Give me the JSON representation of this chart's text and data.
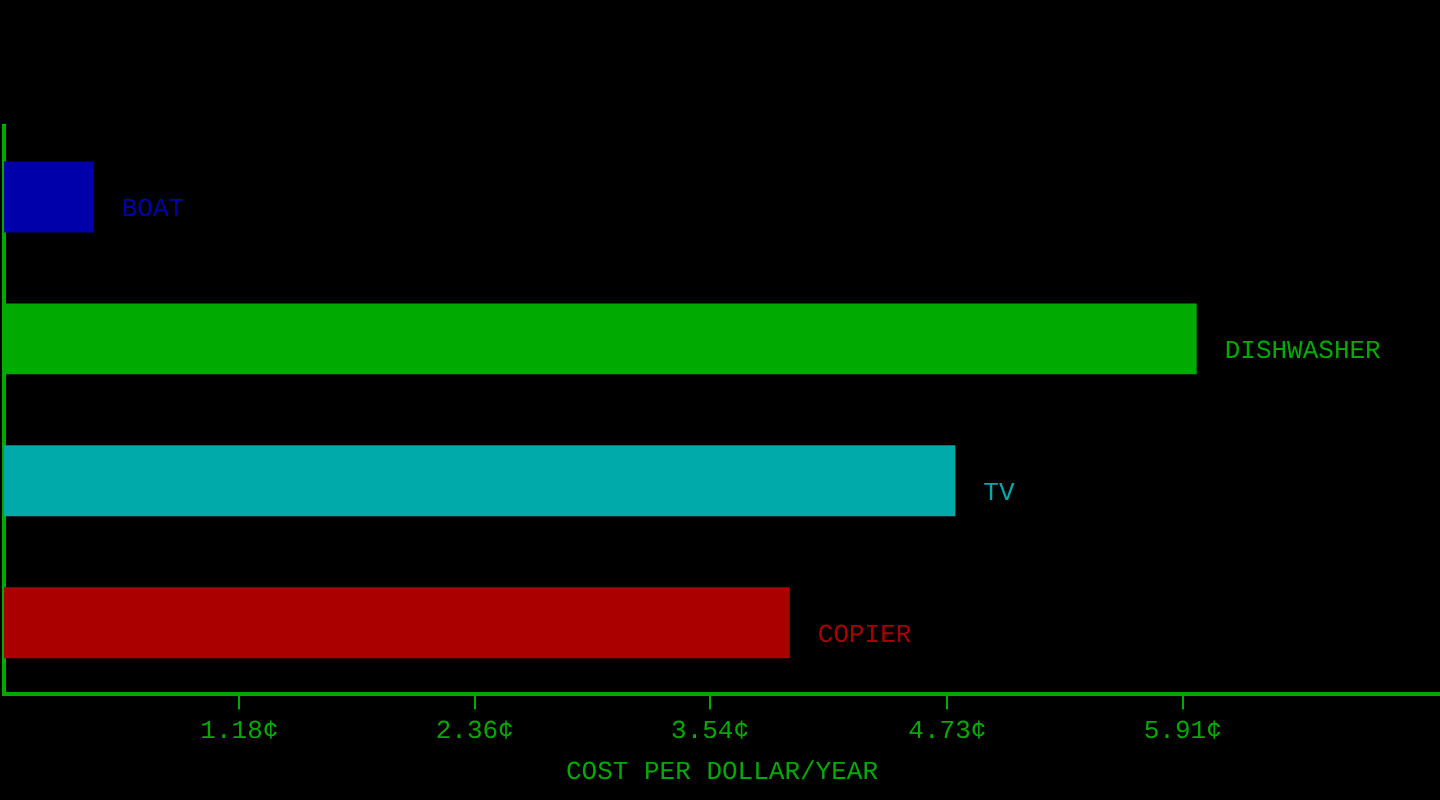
{
  "chart_data": {
    "type": "bar",
    "orientation": "horizontal",
    "categories": [
      "BOAT",
      "DISHWASHER",
      "TV",
      "COPIER"
    ],
    "values": [
      0.45,
      5.98,
      4.77,
      3.94
    ],
    "colors": [
      "#0000aa",
      "#00aa00",
      "#00aaaa",
      "#aa0000"
    ],
    "xlabel": "COST PER DOLLAR/YEAR",
    "xlim": [
      0,
      7.2
    ],
    "xticks": [
      {
        "value": 1.18,
        "label": "1.18¢"
      },
      {
        "value": 2.36,
        "label": "2.36¢"
      },
      {
        "value": 3.54,
        "label": "3.54¢"
      },
      {
        "value": 4.73,
        "label": "4.73¢"
      },
      {
        "value": 5.91,
        "label": "5.91¢"
      }
    ],
    "grid": false,
    "legend": false
  }
}
